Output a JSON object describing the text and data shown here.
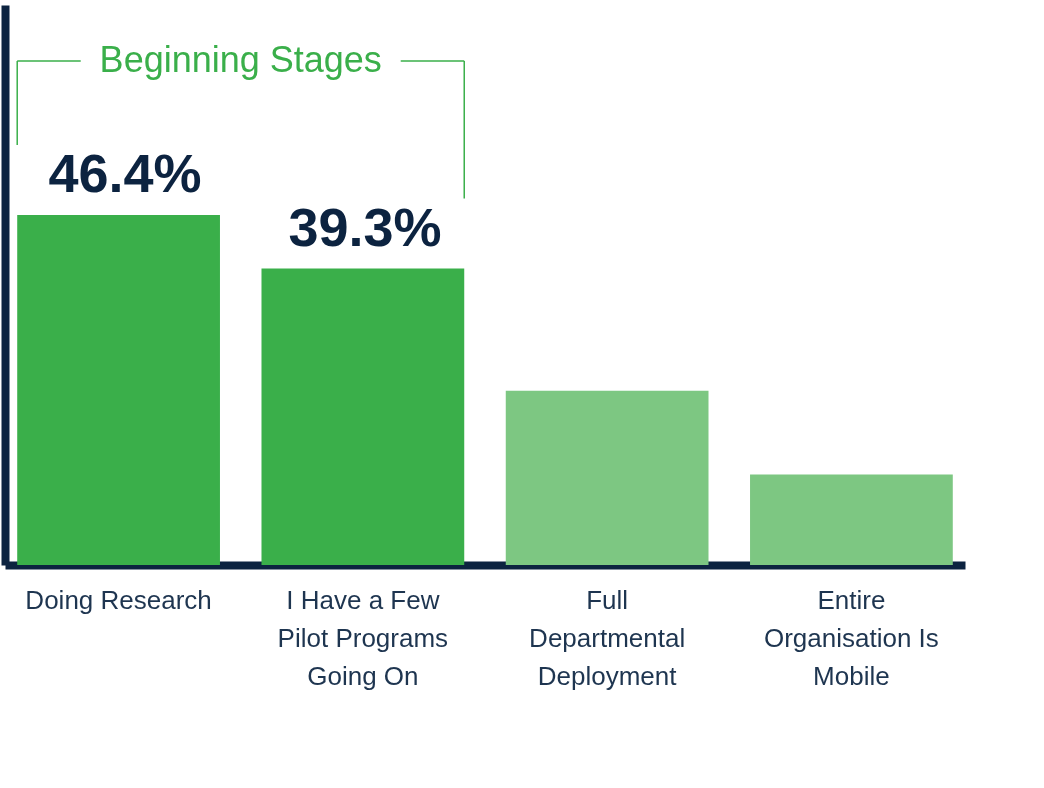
{
  "chart_data": {
    "type": "bar",
    "categories": [
      "Doing Research",
      "I Have a Few Pilot Programs Going On",
      "Full Departmental Deployment",
      "Entire Organisation Is Mobile"
    ],
    "values": [
      46.4,
      39.3,
      23.1,
      12.0
    ],
    "colors": [
      "#3aaf4a",
      "#3aaf4a",
      "#7dc782",
      "#7dc782"
    ],
    "value_labels": [
      "46.4%",
      "39.3%",
      null,
      null
    ],
    "annotations": [
      "Beginning Stages"
    ],
    "tick_labels": "x",
    "grid": false
  }
}
